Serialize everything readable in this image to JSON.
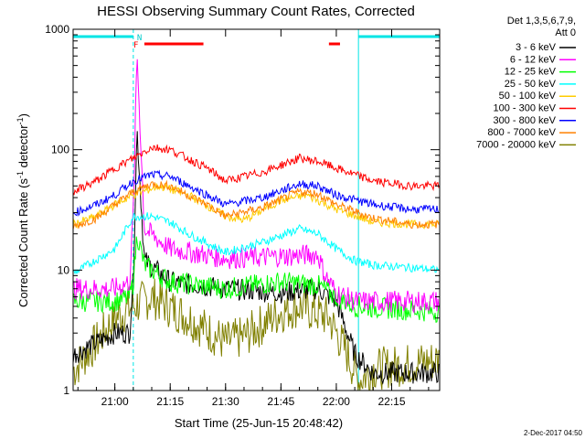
{
  "chart_data": {
    "type": "line",
    "title": "HESSI Observing Summary Count Rates, Corrected",
    "xlabel": "Start Time (25-Jun-15 20:48:42)",
    "ylabel_main": "Corrected Count Rate (s",
    "ylabel_sup1": "-1",
    "ylabel_mid": " detector",
    "ylabel_sup2": "-1",
    "ylabel_end": ")",
    "yscale": "log",
    "ylim": [
      1,
      1000
    ],
    "xlim": [
      "20:48:42",
      "22:28:00"
    ],
    "grid": false,
    "legend_position": "right",
    "legend_header_1": "Det 1,3,5,6,7,9,",
    "legend_header_2": "Att 0",
    "x_tick_labels": [
      "21:00",
      "21:15",
      "21:30",
      "21:45",
      "22:00",
      "22:15"
    ],
    "x_tick_values": [
      "21:00",
      "21:15",
      "21:30",
      "21:45",
      "22:00",
      "22:15"
    ],
    "y_tick_labels": [
      "1",
      "10",
      "100",
      "1000"
    ],
    "y_tick_values": [
      1,
      10,
      100,
      1000
    ],
    "flag_labels": {
      "flare": "F",
      "night": "N"
    },
    "bands": {
      "sunlight": [
        [
          "20:48:42",
          "21:05"
        ],
        [
          "22:06",
          "22:28"
        ]
      ],
      "flare": [
        [
          "21:08",
          "21:24"
        ],
        [
          "21:58",
          "22:01"
        ]
      ]
    },
    "vlines_dashed": [
      "21:05",
      "22:28"
    ],
    "vlines_solid": [
      "22:06"
    ],
    "series": [
      {
        "name": "3 - 6 keV",
        "color": "#000000",
        "x": [
          "20:49",
          "21:00",
          "21:04",
          "21:05",
          "21:06",
          "21:08",
          "21:15",
          "21:30",
          "21:45",
          "21:55",
          "22:00",
          "22:05",
          "22:10",
          "22:28"
        ],
        "values": [
          2,
          3,
          3,
          9,
          150,
          12,
          8,
          7,
          6.5,
          7,
          5.5,
          2,
          1.4,
          1.4
        ]
      },
      {
        "name": "6 - 12 keV",
        "color": "#ff00ff",
        "x": [
          "20:49",
          "21:00",
          "21:04",
          "21:05",
          "21:06",
          "21:08",
          "21:15",
          "21:30",
          "21:45",
          "21:55",
          "21:57",
          "22:00",
          "22:05",
          "22:28"
        ],
        "values": [
          7,
          7,
          8,
          30,
          650,
          22,
          15,
          12.5,
          13,
          13.5,
          9,
          6.5,
          5.5,
          5.5
        ]
      },
      {
        "name": "12 - 25 keV",
        "color": "#00ff00",
        "x": [
          "20:49",
          "21:00",
          "21:04",
          "21:05",
          "21:06",
          "21:08",
          "21:15",
          "21:30",
          "21:45",
          "21:55",
          "22:00",
          "22:05",
          "22:28"
        ],
        "values": [
          5.5,
          5.5,
          6,
          8,
          20,
          11,
          8,
          7,
          8,
          7.5,
          6,
          5,
          4.5
        ]
      },
      {
        "name": "25 - 50 keV",
        "color": "#00ffff",
        "x": [
          "20:49",
          "21:00",
          "21:05",
          "21:10",
          "21:15",
          "21:20",
          "21:30",
          "21:40",
          "21:50",
          "21:55",
          "22:00",
          "22:05",
          "22:10",
          "22:20",
          "22:28"
        ],
        "values": [
          9.5,
          15,
          28,
          28,
          25,
          20,
          14,
          17,
          22,
          20,
          15,
          12,
          11,
          10.5,
          10
        ]
      },
      {
        "name": "50 - 100 keV",
        "color": "#ffcc00",
        "x": [
          "20:49",
          "20:55",
          "21:00",
          "21:05",
          "21:12",
          "21:20",
          "21:30",
          "21:35",
          "21:45",
          "21:52",
          "22:00",
          "22:10",
          "22:20",
          "22:28"
        ],
        "values": [
          24,
          28,
          35,
          42,
          50,
          42,
          28,
          26,
          38,
          42,
          32,
          25,
          24,
          24
        ]
      },
      {
        "name": "100 - 300 keV",
        "color": "#ff0000",
        "x": [
          "20:49",
          "20:55",
          "21:00",
          "21:05",
          "21:10",
          "21:15",
          "21:25",
          "21:30",
          "21:40",
          "21:50",
          "21:55",
          "22:00",
          "22:10",
          "22:20",
          "22:28"
        ],
        "values": [
          45,
          55,
          70,
          85,
          105,
          100,
          70,
          55,
          65,
          85,
          80,
          70,
          55,
          50,
          50
        ]
      },
      {
        "name": "300 - 800 keV",
        "color": "#0000ff",
        "x": [
          "20:49",
          "20:55",
          "21:00",
          "21:05",
          "21:10",
          "21:15",
          "21:25",
          "21:30",
          "21:40",
          "21:50",
          "21:55",
          "22:00",
          "22:10",
          "22:20",
          "22:28"
        ],
        "values": [
          30,
          35,
          42,
          55,
          62,
          60,
          42,
          35,
          40,
          52,
          50,
          42,
          35,
          32,
          32
        ]
      },
      {
        "name": "800 - 7000 keV",
        "color": "#ff8000",
        "x": [
          "20:49",
          "20:55",
          "21:00",
          "21:05",
          "21:10",
          "21:15",
          "21:25",
          "21:30",
          "21:40",
          "21:50",
          "21:55",
          "22:00",
          "22:10",
          "22:20",
          "22:28"
        ],
        "values": [
          23,
          27,
          35,
          45,
          52,
          50,
          35,
          28,
          33,
          45,
          43,
          35,
          27,
          24,
          24
        ]
      },
      {
        "name": "7000 - 20000 keV",
        "color": "#808000",
        "x": [
          "20:49",
          "20:55",
          "21:00",
          "21:05",
          "21:10",
          "21:20",
          "21:30",
          "21:35",
          "21:45",
          "21:50",
          "21:58",
          "22:03",
          "22:06",
          "22:10",
          "22:28"
        ],
        "values": [
          1.5,
          2.5,
          4,
          5,
          6,
          4,
          2.5,
          2.8,
          4.5,
          5,
          4,
          2,
          1.2,
          1.5,
          1.8
        ]
      }
    ]
  },
  "footer_timestamp": "2-Dec-2017 04:50"
}
